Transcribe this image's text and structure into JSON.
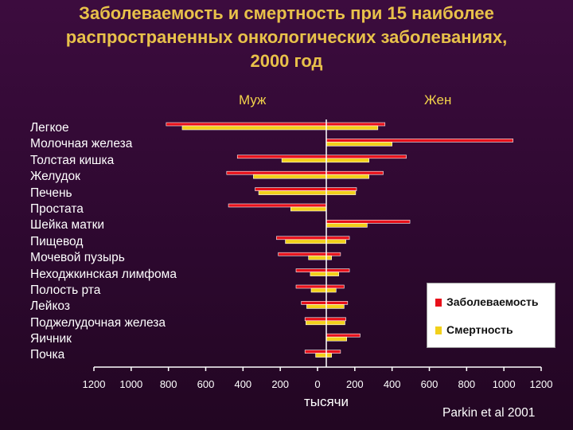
{
  "title_lines": [
    "Заболеваемость и смертность при 15 наиболее",
    "распространенных онкологических заболеваниях,",
    "2000 год"
  ],
  "side_labels": {
    "male": "Муж",
    "female": "Жен"
  },
  "source": "Parkin et al 2001",
  "legend": {
    "incidence": "Заболеваемость",
    "mortality": "Смертность"
  },
  "colors": {
    "incidence": "#e8101a",
    "mortality": "#f2d01a",
    "axis": "#ffffff",
    "background": "#3c0c3e"
  },
  "chart_data": {
    "type": "bar",
    "orientation": "horizontal",
    "xlabel": "тысячи",
    "xlim": [
      -1200,
      1200
    ],
    "x_tick_labels": [
      "1200",
      "1000",
      "800",
      "600",
      "400",
      "200",
      "0",
      "200",
      "400",
      "600",
      "800",
      "1000",
      "1200"
    ],
    "categories": [
      "Легкое",
      "Молочная железа",
      "Толстая кишка",
      "Желудок",
      "Печень",
      "Простата",
      "Шейка матки",
      "Пищевод",
      "Мочевой пузырь",
      "Неходжкинская лимфома",
      "Полость рта",
      "Лейкоз",
      "Поджелудочная железа",
      "Яичник",
      "Почка"
    ],
    "series": [
      {
        "name": "Заболеваемость",
        "group": "Муж",
        "values": [
          900,
          0,
          500,
          560,
          400,
          550,
          0,
          280,
          270,
          170,
          170,
          140,
          120,
          0,
          120
        ]
      },
      {
        "name": "Смертность",
        "group": "Муж",
        "values": [
          810,
          0,
          250,
          410,
          380,
          200,
          0,
          230,
          100,
          90,
          85,
          110,
          115,
          0,
          60
        ]
      },
      {
        "name": "Заболеваемость",
        "group": "Жен",
        "values": [
          330,
          1050,
          450,
          320,
          170,
          0,
          470,
          130,
          80,
          130,
          100,
          120,
          110,
          190,
          80
        ]
      },
      {
        "name": "Смертность",
        "group": "Жен",
        "values": [
          290,
          370,
          240,
          240,
          165,
          0,
          230,
          110,
          30,
          70,
          55,
          100,
          105,
          115,
          30
        ]
      }
    ]
  }
}
